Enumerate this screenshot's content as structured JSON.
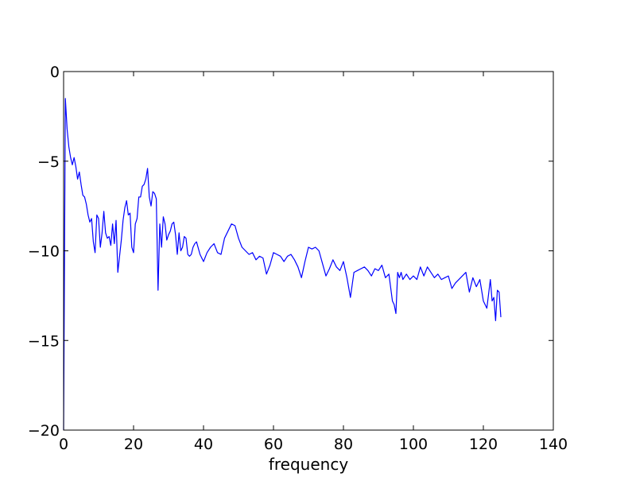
{
  "chart_data": {
    "type": "line",
    "title": "",
    "xlabel": "frequency",
    "ylabel": "",
    "xlim": [
      0,
      140
    ],
    "ylim": [
      -20,
      0
    ],
    "xticks": [
      0,
      20,
      40,
      60,
      80,
      100,
      120,
      140
    ],
    "yticks": [
      0,
      -5,
      -10,
      -15,
      -20
    ],
    "xtick_labels": [
      "0",
      "20",
      "40",
      "60",
      "80",
      "100",
      "120",
      "140"
    ],
    "ytick_labels": [
      "0",
      "−5",
      "−10",
      "−15",
      "−20"
    ],
    "grid": false,
    "line_color": "#0000ff",
    "series": [
      {
        "x": [
          0,
          0.5,
          1,
          1.5,
          2,
          2.5,
          3,
          3.5,
          4,
          4.5,
          5,
          5.5,
          6,
          6.5,
          7,
          7.5,
          8,
          8.5,
          9,
          9.5,
          10,
          10.5,
          11,
          11.5,
          12,
          12.5,
          13,
          13.5,
          14,
          14.5,
          15,
          15.5,
          16,
          16.5,
          17,
          17.5,
          18,
          18.5,
          19,
          19.5,
          20,
          20.5,
          21,
          21.5,
          22,
          22.5,
          23,
          23.5,
          24,
          24.5,
          25,
          25.5,
          26,
          26.5,
          27,
          27.5,
          28,
          28.5,
          29,
          29.5,
          30,
          30.5,
          31,
          31.5,
          32,
          32.5,
          33,
          33.5,
          34,
          34.5,
          35,
          35.5,
          36,
          36.5,
          37,
          37.5,
          38,
          39,
          40,
          41,
          42,
          43,
          44,
          45,
          46,
          47,
          48,
          49,
          50,
          51,
          52,
          53,
          54,
          55,
          56,
          57,
          58,
          59,
          60,
          61,
          62,
          63,
          64,
          65,
          66,
          67,
          68,
          69,
          70,
          71,
          72,
          73,
          74,
          75,
          76,
          77,
          78,
          79,
          80,
          81,
          82,
          83,
          84,
          85,
          86,
          87,
          88,
          89,
          90,
          91,
          92,
          93,
          94,
          94.5,
          95,
          95.5,
          96,
          96.5,
          97,
          98,
          99,
          100,
          101,
          102,
          103,
          104,
          105,
          106,
          107,
          108,
          109,
          110,
          111,
          112,
          113,
          114,
          115,
          116,
          117,
          118,
          119,
          120,
          121,
          122,
          122.5,
          123,
          123.5,
          124,
          124.5,
          125
        ],
        "y": [
          -20,
          -1.5,
          -3.2,
          -4.2,
          -4.8,
          -5.2,
          -4.8,
          -5.3,
          -6.0,
          -5.6,
          -6.3,
          -6.9,
          -7.0,
          -7.4,
          -8.0,
          -8.4,
          -8.2,
          -9.5,
          -10.1,
          -8.0,
          -8.2,
          -9.8,
          -9.0,
          -7.8,
          -9.0,
          -9.3,
          -9.2,
          -9.7,
          -8.5,
          -9.6,
          -8.3,
          -11.2,
          -10.3,
          -9.4,
          -8.3,
          -7.6,
          -7.2,
          -8.0,
          -7.9,
          -9.8,
          -10.1,
          -8.5,
          -8.2,
          -7.0,
          -7.0,
          -6.4,
          -6.3,
          -6.0,
          -5.4,
          -7.0,
          -7.5,
          -6.7,
          -6.8,
          -7.1,
          -12.2,
          -8.5,
          -9.8,
          -8.1,
          -8.5,
          -9.4,
          -9.1,
          -8.9,
          -8.5,
          -8.4,
          -9.1,
          -10.2,
          -9.0,
          -10.0,
          -9.8,
          -9.2,
          -9.3,
          -10.2,
          -10.3,
          -10.2,
          -9.8,
          -9.6,
          -9.5,
          -10.2,
          -10.6,
          -10.1,
          -9.8,
          -9.6,
          -10.1,
          -10.2,
          -9.3,
          -8.9,
          -8.5,
          -8.6,
          -9.3,
          -9.8,
          -10.0,
          -10.2,
          -10.1,
          -10.5,
          -10.3,
          -10.4,
          -11.3,
          -10.8,
          -10.1,
          -10.2,
          -10.3,
          -10.6,
          -10.3,
          -10.2,
          -10.5,
          -10.9,
          -11.5,
          -10.6,
          -9.8,
          -9.9,
          -9.8,
          -10.0,
          -10.7,
          -11.4,
          -11.0,
          -10.5,
          -10.9,
          -11.1,
          -10.6,
          -11.5,
          -12.6,
          -11.2,
          -11.1,
          -11.0,
          -10.9,
          -11.1,
          -11.4,
          -11.0,
          -11.1,
          -10.8,
          -11.5,
          -11.3,
          -12.8,
          -13.0,
          -13.5,
          -11.2,
          -11.5,
          -11.2,
          -11.6,
          -11.3,
          -11.6,
          -11.4,
          -11.6,
          -10.9,
          -11.4,
          -10.9,
          -11.2,
          -11.5,
          -11.3,
          -11.6,
          -11.5,
          -11.4,
          -12.1,
          -11.8,
          -11.6,
          -11.4,
          -11.2,
          -12.3,
          -11.5,
          -12.0,
          -11.6,
          -12.8,
          -13.2,
          -11.6,
          -12.8,
          -12.6,
          -13.9,
          -12.2,
          -12.3,
          -13.7
        ]
      }
    ]
  }
}
